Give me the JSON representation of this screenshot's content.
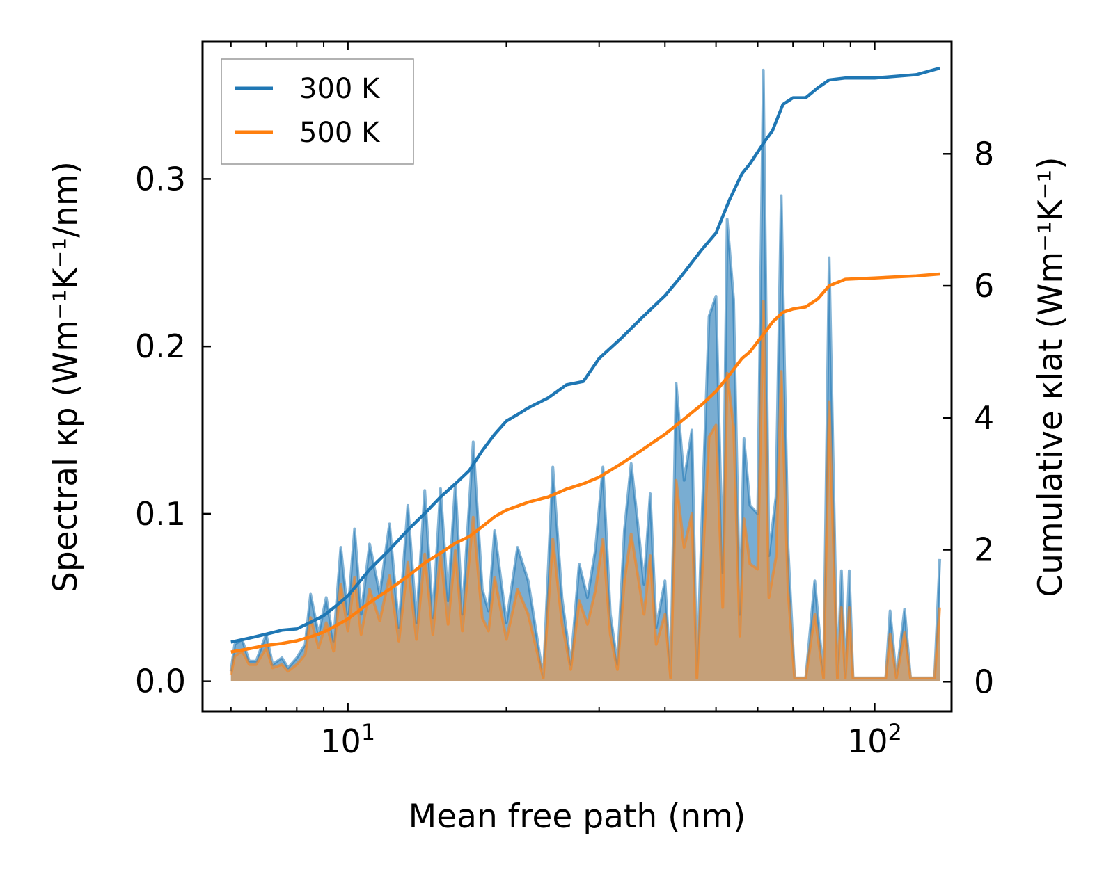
{
  "chart_data": {
    "type": "line",
    "xscale": "log",
    "xlabel": "Mean free path (nm)",
    "ylabel": "Spectral κp (Wm⁻¹K⁻¹/nm)",
    "ylabel_right": "Cumulative κlat (Wm⁻¹K⁻¹)",
    "xlim": [
      5.3,
      140
    ],
    "ylim": [
      -0.018,
      0.382
    ],
    "ylim_right": [
      -0.45,
      9.7
    ],
    "x_ticks": [
      {
        "value": 10,
        "base": "10",
        "exp": "1"
      },
      {
        "value": 100,
        "base": "10",
        "exp": "2"
      }
    ],
    "y_ticks_left": [
      {
        "value": 0.0,
        "label": "0.0"
      },
      {
        "value": 0.1,
        "label": "0.1"
      },
      {
        "value": 0.2,
        "label": "0.2"
      },
      {
        "value": 0.3,
        "label": "0.3"
      }
    ],
    "y_ticks_right": [
      {
        "value": 0,
        "label": "0"
      },
      {
        "value": 2,
        "label": "2"
      },
      {
        "value": 4,
        "label": "4"
      },
      {
        "value": 6,
        "label": "6"
      },
      {
        "value": 8,
        "label": "8"
      }
    ],
    "legend": {
      "location": "top-left",
      "entries": [
        "300 K",
        "500 K"
      ]
    },
    "series": [
      {
        "name": "300 K",
        "color": "#1f77b4",
        "fill_color": "#1f77b4",
        "spectral": [
          [
            6,
            0.006
          ],
          [
            6.1,
            0.022
          ],
          [
            6.3,
            0.025
          ],
          [
            6.5,
            0.012
          ],
          [
            6.7,
            0.012
          ],
          [
            7.0,
            0.028
          ],
          [
            7.2,
            0.01
          ],
          [
            7.5,
            0.014
          ],
          [
            7.7,
            0.008
          ],
          [
            8.0,
            0.014
          ],
          [
            8.3,
            0.022
          ],
          [
            8.5,
            0.052
          ],
          [
            8.8,
            0.028
          ],
          [
            9.1,
            0.05
          ],
          [
            9.4,
            0.024
          ],
          [
            9.7,
            0.08
          ],
          [
            10.0,
            0.04
          ],
          [
            10.3,
            0.091
          ],
          [
            10.6,
            0.04
          ],
          [
            11.0,
            0.082
          ],
          [
            11.5,
            0.052
          ],
          [
            12.0,
            0.094
          ],
          [
            12.5,
            0.032
          ],
          [
            13.0,
            0.105
          ],
          [
            13.5,
            0.035
          ],
          [
            14.0,
            0.114
          ],
          [
            14.5,
            0.038
          ],
          [
            15.0,
            0.115
          ],
          [
            15.5,
            0.048
          ],
          [
            16.0,
            0.118
          ],
          [
            16.5,
            0.04
          ],
          [
            17.3,
            0.143
          ],
          [
            18.0,
            0.055
          ],
          [
            18.5,
            0.042
          ],
          [
            19.0,
            0.09
          ],
          [
            20.0,
            0.035
          ],
          [
            21.0,
            0.08
          ],
          [
            22.0,
            0.06
          ],
          [
            23.5,
            0.002
          ],
          [
            24.5,
            0.128
          ],
          [
            25.5,
            0.05
          ],
          [
            26.5,
            0.01
          ],
          [
            27.5,
            0.07
          ],
          [
            28.5,
            0.05
          ],
          [
            29.5,
            0.078
          ],
          [
            30.5,
            0.128
          ],
          [
            31.5,
            0.04
          ],
          [
            32.5,
            0.01
          ],
          [
            33.5,
            0.09
          ],
          [
            34.5,
            0.13
          ],
          [
            35.5,
            0.095
          ],
          [
            36.5,
            0.058
          ],
          [
            37.5,
            0.112
          ],
          [
            38.5,
            0.032
          ],
          [
            40.0,
            0.06
          ],
          [
            41.0,
            0.002
          ],
          [
            42.0,
            0.178
          ],
          [
            43.5,
            0.12
          ],
          [
            45.0,
            0.15
          ],
          [
            46.0,
            0.002
          ],
          [
            47.0,
            0.095
          ],
          [
            48.5,
            0.218
          ],
          [
            50.0,
            0.23
          ],
          [
            51.5,
            0.065
          ],
          [
            52.5,
            0.276
          ],
          [
            54.0,
            0.228
          ],
          [
            55.5,
            0.04
          ],
          [
            56.5,
            0.145
          ],
          [
            58.0,
            0.105
          ],
          [
            60.0,
            0.1
          ],
          [
            61.5,
            0.365
          ],
          [
            63.0,
            0.075
          ],
          [
            65.0,
            0.11
          ],
          [
            66.5,
            0.29
          ],
          [
            68.5,
            0.08
          ],
          [
            70.5,
            0.002
          ],
          [
            74.0,
            0.002
          ],
          [
            77.0,
            0.06
          ],
          [
            80.0,
            0.002
          ],
          [
            82.0,
            0.253
          ],
          [
            85.0,
            0.002
          ],
          [
            86.5,
            0.066
          ],
          [
            88.0,
            0.002
          ],
          [
            89.5,
            0.066
          ],
          [
            91.0,
            0.002
          ],
          [
            105.0,
            0.002
          ],
          [
            107.0,
            0.042
          ],
          [
            110.0,
            0.002
          ],
          [
            114.0,
            0.043
          ],
          [
            117.0,
            0.002
          ],
          [
            130.0,
            0.002
          ],
          [
            133.0,
            0.073
          ]
        ],
        "cumulative": [
          [
            6,
            0.6
          ],
          [
            6.5,
            0.66
          ],
          [
            7.0,
            0.72
          ],
          [
            7.5,
            0.78
          ],
          [
            8.0,
            0.8
          ],
          [
            8.5,
            0.9
          ],
          [
            9.0,
            1.0
          ],
          [
            9.5,
            1.15
          ],
          [
            10.0,
            1.3
          ],
          [
            11.0,
            1.7
          ],
          [
            12.0,
            2.0
          ],
          [
            13.0,
            2.3
          ],
          [
            14.0,
            2.55
          ],
          [
            15.0,
            2.8
          ],
          [
            16.0,
            3.0
          ],
          [
            17.0,
            3.2
          ],
          [
            18.0,
            3.5
          ],
          [
            19.0,
            3.75
          ],
          [
            20.0,
            3.95
          ],
          [
            21.0,
            4.05
          ],
          [
            22.0,
            4.15
          ],
          [
            24.0,
            4.3
          ],
          [
            26.0,
            4.5
          ],
          [
            28.0,
            4.55
          ],
          [
            30.0,
            4.9
          ],
          [
            33.0,
            5.2
          ],
          [
            36.0,
            5.5
          ],
          [
            40.0,
            5.85
          ],
          [
            43.0,
            6.15
          ],
          [
            47.0,
            6.55
          ],
          [
            50.0,
            6.8
          ],
          [
            53.0,
            7.3
          ],
          [
            56.0,
            7.7
          ],
          [
            58.0,
            7.85
          ],
          [
            62.0,
            8.2
          ],
          [
            64.0,
            8.35
          ],
          [
            67.0,
            8.75
          ],
          [
            70.0,
            8.85
          ],
          [
            74.0,
            8.85
          ],
          [
            78.0,
            9.0
          ],
          [
            82.0,
            9.12
          ],
          [
            88.0,
            9.15
          ],
          [
            100.0,
            9.15
          ],
          [
            120.0,
            9.2
          ],
          [
            133.0,
            9.3
          ]
        ]
      },
      {
        "name": "500 K",
        "color": "#ff7f0e",
        "fill_color": "#cd9e6f",
        "spectral": [
          [
            6,
            0.004
          ],
          [
            6.1,
            0.015
          ],
          [
            6.3,
            0.018
          ],
          [
            6.5,
            0.01
          ],
          [
            6.7,
            0.01
          ],
          [
            7.0,
            0.02
          ],
          [
            7.2,
            0.008
          ],
          [
            7.5,
            0.01
          ],
          [
            7.7,
            0.006
          ],
          [
            8.0,
            0.01
          ],
          [
            8.3,
            0.016
          ],
          [
            8.5,
            0.038
          ],
          [
            8.8,
            0.02
          ],
          [
            9.1,
            0.035
          ],
          [
            9.4,
            0.018
          ],
          [
            9.7,
            0.058
          ],
          [
            10.0,
            0.03
          ],
          [
            10.3,
            0.062
          ],
          [
            10.6,
            0.028
          ],
          [
            11.0,
            0.055
          ],
          [
            11.5,
            0.036
          ],
          [
            12.0,
            0.063
          ],
          [
            12.5,
            0.024
          ],
          [
            13.0,
            0.071
          ],
          [
            13.5,
            0.025
          ],
          [
            14.0,
            0.076
          ],
          [
            14.5,
            0.028
          ],
          [
            15.0,
            0.077
          ],
          [
            15.5,
            0.034
          ],
          [
            16.0,
            0.078
          ],
          [
            16.5,
            0.03
          ],
          [
            17.3,
            0.098
          ],
          [
            18.0,
            0.038
          ],
          [
            18.5,
            0.03
          ],
          [
            19.0,
            0.062
          ],
          [
            20.0,
            0.025
          ],
          [
            21.0,
            0.055
          ],
          [
            22.0,
            0.04
          ],
          [
            23.5,
            0.002
          ],
          [
            24.5,
            0.085
          ],
          [
            25.5,
            0.035
          ],
          [
            26.5,
            0.007
          ],
          [
            27.5,
            0.048
          ],
          [
            28.5,
            0.034
          ],
          [
            29.5,
            0.054
          ],
          [
            30.5,
            0.085
          ],
          [
            31.5,
            0.028
          ],
          [
            32.5,
            0.007
          ],
          [
            33.5,
            0.06
          ],
          [
            34.5,
            0.088
          ],
          [
            35.5,
            0.064
          ],
          [
            36.5,
            0.04
          ],
          [
            37.5,
            0.075
          ],
          [
            38.5,
            0.022
          ],
          [
            40.0,
            0.04
          ],
          [
            41.0,
            0.002
          ],
          [
            42.0,
            0.12
          ],
          [
            43.5,
            0.08
          ],
          [
            45.0,
            0.1
          ],
          [
            46.0,
            0.002
          ],
          [
            47.0,
            0.062
          ],
          [
            48.5,
            0.146
          ],
          [
            50.0,
            0.153
          ],
          [
            51.5,
            0.044
          ],
          [
            52.5,
            0.184
          ],
          [
            54.0,
            0.152
          ],
          [
            55.5,
            0.027
          ],
          [
            56.5,
            0.097
          ],
          [
            58.0,
            0.07
          ],
          [
            60.0,
            0.067
          ],
          [
            61.5,
            0.227
          ],
          [
            63.0,
            0.05
          ],
          [
            65.0,
            0.074
          ],
          [
            66.5,
            0.185
          ],
          [
            68.5,
            0.054
          ],
          [
            70.5,
            0.002
          ],
          [
            74.0,
            0.002
          ],
          [
            77.0,
            0.04
          ],
          [
            80.0,
            0.002
          ],
          [
            82.0,
            0.167
          ],
          [
            85.0,
            0.002
          ],
          [
            86.5,
            0.044
          ],
          [
            88.0,
            0.002
          ],
          [
            89.5,
            0.044
          ],
          [
            91.0,
            0.002
          ],
          [
            105.0,
            0.002
          ],
          [
            107.0,
            0.028
          ],
          [
            110.0,
            0.002
          ],
          [
            114.0,
            0.029
          ],
          [
            117.0,
            0.002
          ],
          [
            130.0,
            0.002
          ],
          [
            133.0,
            0.044
          ]
        ],
        "cumulative": [
          [
            6,
            0.45
          ],
          [
            6.5,
            0.5
          ],
          [
            7.0,
            0.55
          ],
          [
            7.5,
            0.58
          ],
          [
            8.0,
            0.62
          ],
          [
            8.5,
            0.68
          ],
          [
            9.0,
            0.75
          ],
          [
            9.5,
            0.85
          ],
          [
            10.0,
            0.95
          ],
          [
            11.0,
            1.2
          ],
          [
            12.0,
            1.4
          ],
          [
            13.0,
            1.6
          ],
          [
            14.0,
            1.8
          ],
          [
            15.0,
            1.95
          ],
          [
            16.0,
            2.1
          ],
          [
            17.0,
            2.2
          ],
          [
            18.0,
            2.35
          ],
          [
            19.0,
            2.5
          ],
          [
            20.0,
            2.6
          ],
          [
            22.0,
            2.72
          ],
          [
            24.0,
            2.8
          ],
          [
            26.0,
            2.92
          ],
          [
            28.0,
            3.0
          ],
          [
            30.0,
            3.1
          ],
          [
            33.0,
            3.3
          ],
          [
            36.0,
            3.5
          ],
          [
            40.0,
            3.75
          ],
          [
            43.0,
            3.95
          ],
          [
            47.0,
            4.2
          ],
          [
            50.0,
            4.4
          ],
          [
            53.0,
            4.65
          ],
          [
            56.0,
            4.9
          ],
          [
            58.0,
            5.0
          ],
          [
            62.0,
            5.3
          ],
          [
            64.0,
            5.45
          ],
          [
            67.0,
            5.6
          ],
          [
            70.0,
            5.65
          ],
          [
            74.0,
            5.68
          ],
          [
            78.0,
            5.8
          ],
          [
            82.0,
            6.0
          ],
          [
            88.0,
            6.1
          ],
          [
            100.0,
            6.12
          ],
          [
            120.0,
            6.15
          ],
          [
            133.0,
            6.18
          ]
        ]
      }
    ]
  }
}
